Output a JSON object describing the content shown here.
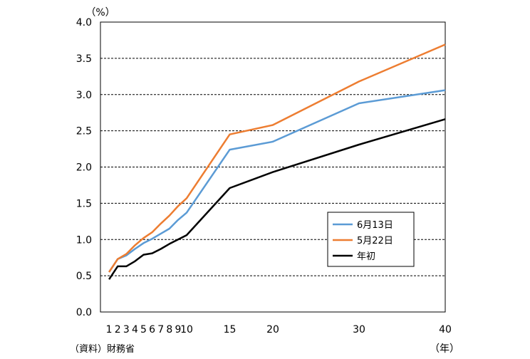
{
  "chart_data": {
    "type": "line",
    "unit_label": "（%）",
    "x_unit_label": "（年）",
    "source_note": "（資料）財務省",
    "ylim": [
      0,
      4.0
    ],
    "yticks": [
      "0.0",
      "0.5",
      "1.0",
      "1.5",
      "2.0",
      "2.5",
      "3.0",
      "3.5",
      "4.0"
    ],
    "ytick_values": [
      0,
      0.5,
      1.0,
      1.5,
      2.0,
      2.5,
      3.0,
      3.5,
      4.0
    ],
    "xticks": [
      1,
      2,
      3,
      4,
      5,
      6,
      7,
      8,
      9,
      10,
      15,
      20,
      30,
      40
    ],
    "xtick_labels": [
      "1",
      "2",
      "3",
      "4",
      "5",
      "6",
      "7",
      "8",
      "9",
      "10",
      "15",
      "20",
      "30",
      "40"
    ],
    "grid": "horizontal-dashed",
    "legend_position": "center-right",
    "series": [
      {
        "name": "6月13日",
        "color": "#5b9bd5",
        "x": [
          1,
          2,
          3,
          4,
          5,
          6,
          7,
          8,
          9,
          10,
          15,
          20,
          30,
          40
        ],
        "values": [
          0.55,
          0.73,
          0.78,
          0.87,
          0.95,
          1.01,
          1.08,
          1.15,
          1.27,
          1.37,
          2.24,
          2.35,
          2.88,
          3.06
        ]
      },
      {
        "name": "5月22日",
        "color": "#ed7d31",
        "x": [
          1,
          2,
          3,
          4,
          5,
          6,
          7,
          8,
          9,
          10,
          15,
          20,
          30,
          40
        ],
        "values": [
          0.55,
          0.73,
          0.8,
          0.92,
          1.02,
          1.1,
          1.22,
          1.33,
          1.46,
          1.57,
          2.45,
          2.58,
          3.18,
          3.69
        ]
      },
      {
        "name": "年初",
        "color": "#000000",
        "x": [
          1,
          2,
          3,
          4,
          5,
          6,
          7,
          8,
          9,
          10,
          15,
          20,
          30,
          40
        ],
        "values": [
          0.45,
          0.63,
          0.63,
          0.7,
          0.79,
          0.81,
          0.87,
          0.94,
          1.0,
          1.06,
          1.71,
          1.93,
          2.31,
          2.66
        ]
      }
    ]
  }
}
